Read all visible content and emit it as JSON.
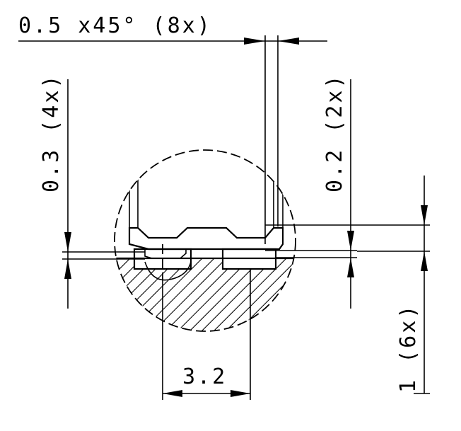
{
  "dimensions": {
    "chamfer": "0.5 x45° (8x)",
    "height_left": "0.3 (4x)",
    "height_right": "0.2 (2x)",
    "width_bottom": "3.2",
    "height_far_right": "1 (6x)"
  },
  "colors": {
    "line": "#000000",
    "background": "#ffffff"
  }
}
